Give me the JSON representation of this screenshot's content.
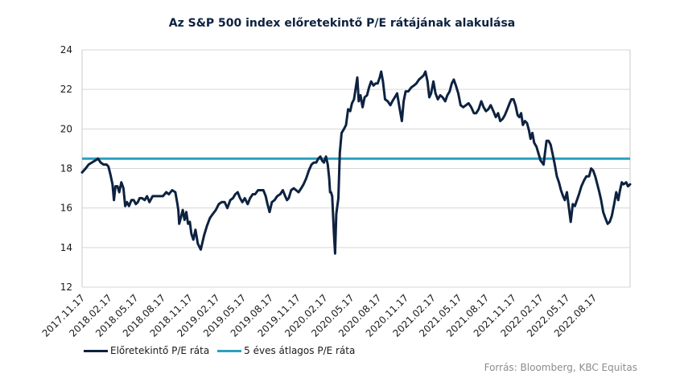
{
  "chart_data": {
    "type": "line",
    "title": "Az S&P 500 index előretekintő P/E rátájának alakulása",
    "ylim": [
      12,
      24
    ],
    "yticks": [
      12,
      14,
      16,
      18,
      20,
      22,
      24
    ],
    "xlim": [
      "2017-11-17",
      "2022-12-17"
    ],
    "xticks": [
      "2017.11.17",
      "2018.02.17",
      "2018.05.17",
      "2018.08.17",
      "2018.11.17",
      "2019.02.17",
      "2019.05.17",
      "2019.08.17",
      "2019.11.17",
      "2020.02.17",
      "2020.05.17",
      "2020.08.17",
      "2020.11.17",
      "2021.02.17",
      "2021.05.17",
      "2021.08.17",
      "2021.11.17",
      "2022.02.17",
      "2022.05.17",
      "2022.08.17"
    ],
    "grid": {
      "y": true,
      "x": false
    },
    "legend_position": "bottom-left",
    "series": [
      {
        "name": "Előretekintő P/E ráta",
        "color": "#0d2240",
        "type": "line",
        "points": [
          [
            "2017-11-17",
            17.8
          ],
          [
            "2017-11-29",
            18.0
          ],
          [
            "2017-12-09",
            18.2
          ],
          [
            "2017-12-20",
            18.3
          ],
          [
            "2017-12-31",
            18.4
          ],
          [
            "2018-01-10",
            18.5
          ],
          [
            "2018-01-19",
            18.3
          ],
          [
            "2018-01-29",
            18.2
          ],
          [
            "2018-02-08",
            18.2
          ],
          [
            "2018-02-14",
            18.1
          ],
          [
            "2018-02-21",
            17.7
          ],
          [
            "2018-02-28",
            17.2
          ],
          [
            "2018-03-05",
            16.4
          ],
          [
            "2018-03-10",
            17.1
          ],
          [
            "2018-03-17",
            17.1
          ],
          [
            "2018-03-23",
            16.8
          ],
          [
            "2018-03-30",
            17.3
          ],
          [
            "2018-04-06",
            17.0
          ],
          [
            "2018-04-12",
            16.1
          ],
          [
            "2018-04-18",
            16.3
          ],
          [
            "2018-04-25",
            16.1
          ],
          [
            "2018-05-03",
            16.4
          ],
          [
            "2018-05-11",
            16.4
          ],
          [
            "2018-05-18",
            16.2
          ],
          [
            "2018-05-25",
            16.3
          ],
          [
            "2018-05-31",
            16.5
          ],
          [
            "2018-06-08",
            16.5
          ],
          [
            "2018-06-17",
            16.4
          ],
          [
            "2018-06-25",
            16.6
          ],
          [
            "2018-07-03",
            16.3
          ],
          [
            "2018-07-14",
            16.6
          ],
          [
            "2018-07-25",
            16.6
          ],
          [
            "2018-08-07",
            16.6
          ],
          [
            "2018-08-18",
            16.6
          ],
          [
            "2018-08-29",
            16.8
          ],
          [
            "2018-09-07",
            16.7
          ],
          [
            "2018-09-18",
            16.9
          ],
          [
            "2018-09-29",
            16.8
          ],
          [
            "2018-10-06",
            16.2
          ],
          [
            "2018-10-09",
            15.9
          ],
          [
            "2018-10-12",
            15.2
          ],
          [
            "2018-10-19",
            15.6
          ],
          [
            "2018-10-24",
            15.9
          ],
          [
            "2018-10-30",
            15.4
          ],
          [
            "2018-11-05",
            15.8
          ],
          [
            "2018-11-11",
            15.2
          ],
          [
            "2018-11-17",
            15.3
          ],
          [
            "2018-11-22",
            14.7
          ],
          [
            "2018-11-29",
            14.4
          ],
          [
            "2018-12-06",
            14.9
          ],
          [
            "2018-12-14",
            14.2
          ],
          [
            "2018-12-24",
            13.9
          ],
          [
            "2019-01-04",
            14.6
          ],
          [
            "2019-01-14",
            15.1
          ],
          [
            "2019-01-24",
            15.5
          ],
          [
            "2019-02-03",
            15.7
          ],
          [
            "2019-02-13",
            15.9
          ],
          [
            "2019-02-23",
            16.2
          ],
          [
            "2019-03-05",
            16.3
          ],
          [
            "2019-03-15",
            16.3
          ],
          [
            "2019-03-24",
            16.0
          ],
          [
            "2019-04-03",
            16.4
          ],
          [
            "2019-04-12",
            16.5
          ],
          [
            "2019-04-20",
            16.7
          ],
          [
            "2019-04-28",
            16.8
          ],
          [
            "2019-05-06",
            16.5
          ],
          [
            "2019-05-14",
            16.3
          ],
          [
            "2019-05-22",
            16.5
          ],
          [
            "2019-06-01",
            16.2
          ],
          [
            "2019-06-09",
            16.5
          ],
          [
            "2019-06-18",
            16.7
          ],
          [
            "2019-06-26",
            16.7
          ],
          [
            "2019-07-06",
            16.9
          ],
          [
            "2019-07-15",
            16.9
          ],
          [
            "2019-07-24",
            16.9
          ],
          [
            "2019-08-01",
            16.6
          ],
          [
            "2019-08-07",
            16.2
          ],
          [
            "2019-08-14",
            15.8
          ],
          [
            "2019-08-22",
            16.3
          ],
          [
            "2019-08-31",
            16.4
          ],
          [
            "2019-09-09",
            16.6
          ],
          [
            "2019-09-19",
            16.7
          ],
          [
            "2019-09-28",
            16.9
          ],
          [
            "2019-10-06",
            16.6
          ],
          [
            "2019-10-12",
            16.4
          ],
          [
            "2019-10-18",
            16.5
          ],
          [
            "2019-10-26",
            16.9
          ],
          [
            "2019-11-04",
            17.0
          ],
          [
            "2019-11-12",
            16.9
          ],
          [
            "2019-11-20",
            16.8
          ],
          [
            "2019-11-29",
            17.0
          ],
          [
            "2019-12-07",
            17.2
          ],
          [
            "2019-12-16",
            17.5
          ],
          [
            "2019-12-25",
            17.9
          ],
          [
            "2020-01-03",
            18.2
          ],
          [
            "2020-01-11",
            18.3
          ],
          [
            "2020-01-19",
            18.3
          ],
          [
            "2020-01-26",
            18.5
          ],
          [
            "2020-02-02",
            18.6
          ],
          [
            "2020-02-08",
            18.4
          ],
          [
            "2020-02-14",
            18.3
          ],
          [
            "2020-02-21",
            18.6
          ],
          [
            "2020-02-27",
            18.2
          ],
          [
            "2020-03-03",
            17.5
          ],
          [
            "2020-03-06",
            16.8
          ],
          [
            "2020-03-09",
            16.8
          ],
          [
            "2020-03-13",
            16.6
          ],
          [
            "2020-03-19",
            14.7
          ],
          [
            "2020-03-23",
            13.7
          ],
          [
            "2020-03-27",
            15.7
          ],
          [
            "2020-04-03",
            16.5
          ],
          [
            "2020-04-08",
            18.8
          ],
          [
            "2020-04-14",
            19.8
          ],
          [
            "2020-04-22",
            20.0
          ],
          [
            "2020-04-29",
            20.2
          ],
          [
            "2020-05-06",
            21.0
          ],
          [
            "2020-05-13",
            20.9
          ],
          [
            "2020-05-19",
            21.3
          ],
          [
            "2020-05-26",
            21.5
          ],
          [
            "2020-05-31",
            22.0
          ],
          [
            "2020-06-06",
            22.6
          ],
          [
            "2020-06-11",
            21.4
          ],
          [
            "2020-06-17",
            21.7
          ],
          [
            "2020-06-24",
            21.1
          ],
          [
            "2020-07-01",
            21.6
          ],
          [
            "2020-07-09",
            21.7
          ],
          [
            "2020-07-16",
            22.1
          ],
          [
            "2020-07-23",
            22.4
          ],
          [
            "2020-07-31",
            22.2
          ],
          [
            "2020-08-07",
            22.3
          ],
          [
            "2020-08-14",
            22.3
          ],
          [
            "2020-08-21",
            22.6
          ],
          [
            "2020-08-26",
            22.9
          ],
          [
            "2020-09-01",
            22.4
          ],
          [
            "2020-09-08",
            21.5
          ],
          [
            "2020-09-17",
            21.4
          ],
          [
            "2020-09-26",
            21.2
          ],
          [
            "2020-10-03",
            21.4
          ],
          [
            "2020-10-11",
            21.6
          ],
          [
            "2020-10-19",
            21.8
          ],
          [
            "2020-10-28",
            21.0
          ],
          [
            "2020-11-04",
            20.4
          ],
          [
            "2020-11-10",
            21.4
          ],
          [
            "2020-11-17",
            21.9
          ],
          [
            "2020-11-26",
            21.9
          ],
          [
            "2020-12-06",
            22.1
          ],
          [
            "2020-12-15",
            22.2
          ],
          [
            "2020-12-23",
            22.3
          ],
          [
            "2021-01-01",
            22.5
          ],
          [
            "2021-01-09",
            22.6
          ],
          [
            "2021-01-16",
            22.7
          ],
          [
            "2021-01-23",
            22.9
          ],
          [
            "2021-01-30",
            22.4
          ],
          [
            "2021-02-05",
            21.6
          ],
          [
            "2021-02-11",
            21.8
          ],
          [
            "2021-02-19",
            22.4
          ],
          [
            "2021-02-26",
            21.8
          ],
          [
            "2021-03-06",
            21.5
          ],
          [
            "2021-03-14",
            21.7
          ],
          [
            "2021-03-22",
            21.6
          ],
          [
            "2021-03-31",
            21.4
          ],
          [
            "2021-04-07",
            21.7
          ],
          [
            "2021-04-15",
            21.9
          ],
          [
            "2021-04-22",
            22.3
          ],
          [
            "2021-04-29",
            22.5
          ],
          [
            "2021-05-06",
            22.2
          ],
          [
            "2021-05-14",
            21.8
          ],
          [
            "2021-05-22",
            21.2
          ],
          [
            "2021-05-31",
            21.1
          ],
          [
            "2021-06-09",
            21.2
          ],
          [
            "2021-06-18",
            21.3
          ],
          [
            "2021-06-27",
            21.1
          ],
          [
            "2021-07-06",
            20.8
          ],
          [
            "2021-07-14",
            20.8
          ],
          [
            "2021-07-22",
            21.0
          ],
          [
            "2021-07-31",
            21.4
          ],
          [
            "2021-08-08",
            21.1
          ],
          [
            "2021-08-16",
            20.9
          ],
          [
            "2021-08-24",
            21.0
          ],
          [
            "2021-09-01",
            21.2
          ],
          [
            "2021-09-10",
            20.9
          ],
          [
            "2021-09-18",
            20.6
          ],
          [
            "2021-09-26",
            20.8
          ],
          [
            "2021-10-03",
            20.4
          ],
          [
            "2021-10-11",
            20.5
          ],
          [
            "2021-10-19",
            20.7
          ],
          [
            "2021-10-27",
            21.0
          ],
          [
            "2021-11-04",
            21.3
          ],
          [
            "2021-11-10",
            21.5
          ],
          [
            "2021-11-17",
            21.5
          ],
          [
            "2021-11-24",
            21.2
          ],
          [
            "2021-12-01",
            20.7
          ],
          [
            "2021-12-07",
            20.6
          ],
          [
            "2021-12-13",
            20.8
          ],
          [
            "2021-12-19",
            20.2
          ],
          [
            "2021-12-26",
            20.4
          ],
          [
            "2022-01-02",
            20.3
          ],
          [
            "2022-01-09",
            19.9
          ],
          [
            "2022-01-14",
            19.5
          ],
          [
            "2022-01-20",
            19.8
          ],
          [
            "2022-01-26",
            19.3
          ],
          [
            "2022-02-03",
            19.1
          ],
          [
            "2022-02-11",
            18.7
          ],
          [
            "2022-02-17",
            18.4
          ],
          [
            "2022-02-22",
            18.3
          ],
          [
            "2022-02-27",
            18.2
          ],
          [
            "2022-03-04",
            18.8
          ],
          [
            "2022-03-09",
            19.4
          ],
          [
            "2022-03-16",
            19.4
          ],
          [
            "2022-03-23",
            19.2
          ],
          [
            "2022-03-30",
            18.7
          ],
          [
            "2022-04-06",
            18.2
          ],
          [
            "2022-04-13",
            17.6
          ],
          [
            "2022-04-20",
            17.3
          ],
          [
            "2022-04-27",
            16.9
          ],
          [
            "2022-05-04",
            16.6
          ],
          [
            "2022-05-10",
            16.4
          ],
          [
            "2022-05-17",
            16.8
          ],
          [
            "2022-05-23",
            16.1
          ],
          [
            "2022-05-30",
            15.3
          ],
          [
            "2022-06-06",
            16.2
          ],
          [
            "2022-06-13",
            16.1
          ],
          [
            "2022-06-20",
            16.4
          ],
          [
            "2022-06-27",
            16.7
          ],
          [
            "2022-07-05",
            17.1
          ],
          [
            "2022-07-14",
            17.4
          ],
          [
            "2022-07-22",
            17.6
          ],
          [
            "2022-07-31",
            17.6
          ],
          [
            "2022-08-07",
            18.0
          ],
          [
            "2022-08-14",
            17.9
          ],
          [
            "2022-08-21",
            17.6
          ],
          [
            "2022-08-28",
            17.2
          ],
          [
            "2022-09-04",
            16.8
          ],
          [
            "2022-09-10",
            16.4
          ],
          [
            "2022-09-17",
            15.8
          ],
          [
            "2022-09-24",
            15.5
          ],
          [
            "2022-10-02",
            15.2
          ],
          [
            "2022-10-09",
            15.3
          ],
          [
            "2022-10-16",
            15.6
          ],
          [
            "2022-10-24",
            16.2
          ],
          [
            "2022-10-31",
            16.8
          ],
          [
            "2022-11-07",
            16.4
          ],
          [
            "2022-11-13",
            16.9
          ],
          [
            "2022-11-19",
            17.3
          ],
          [
            "2022-11-25",
            17.2
          ],
          [
            "2022-12-04",
            17.3
          ],
          [
            "2022-12-10",
            17.1
          ],
          [
            "2022-12-17",
            17.2
          ]
        ]
      },
      {
        "name": "5 éves átlagos P/E ráta",
        "color": "#2aa0c0",
        "type": "constant",
        "value": 18.5
      }
    ]
  },
  "source_note": "Forrás: Bloomberg,  KBC Equitas"
}
